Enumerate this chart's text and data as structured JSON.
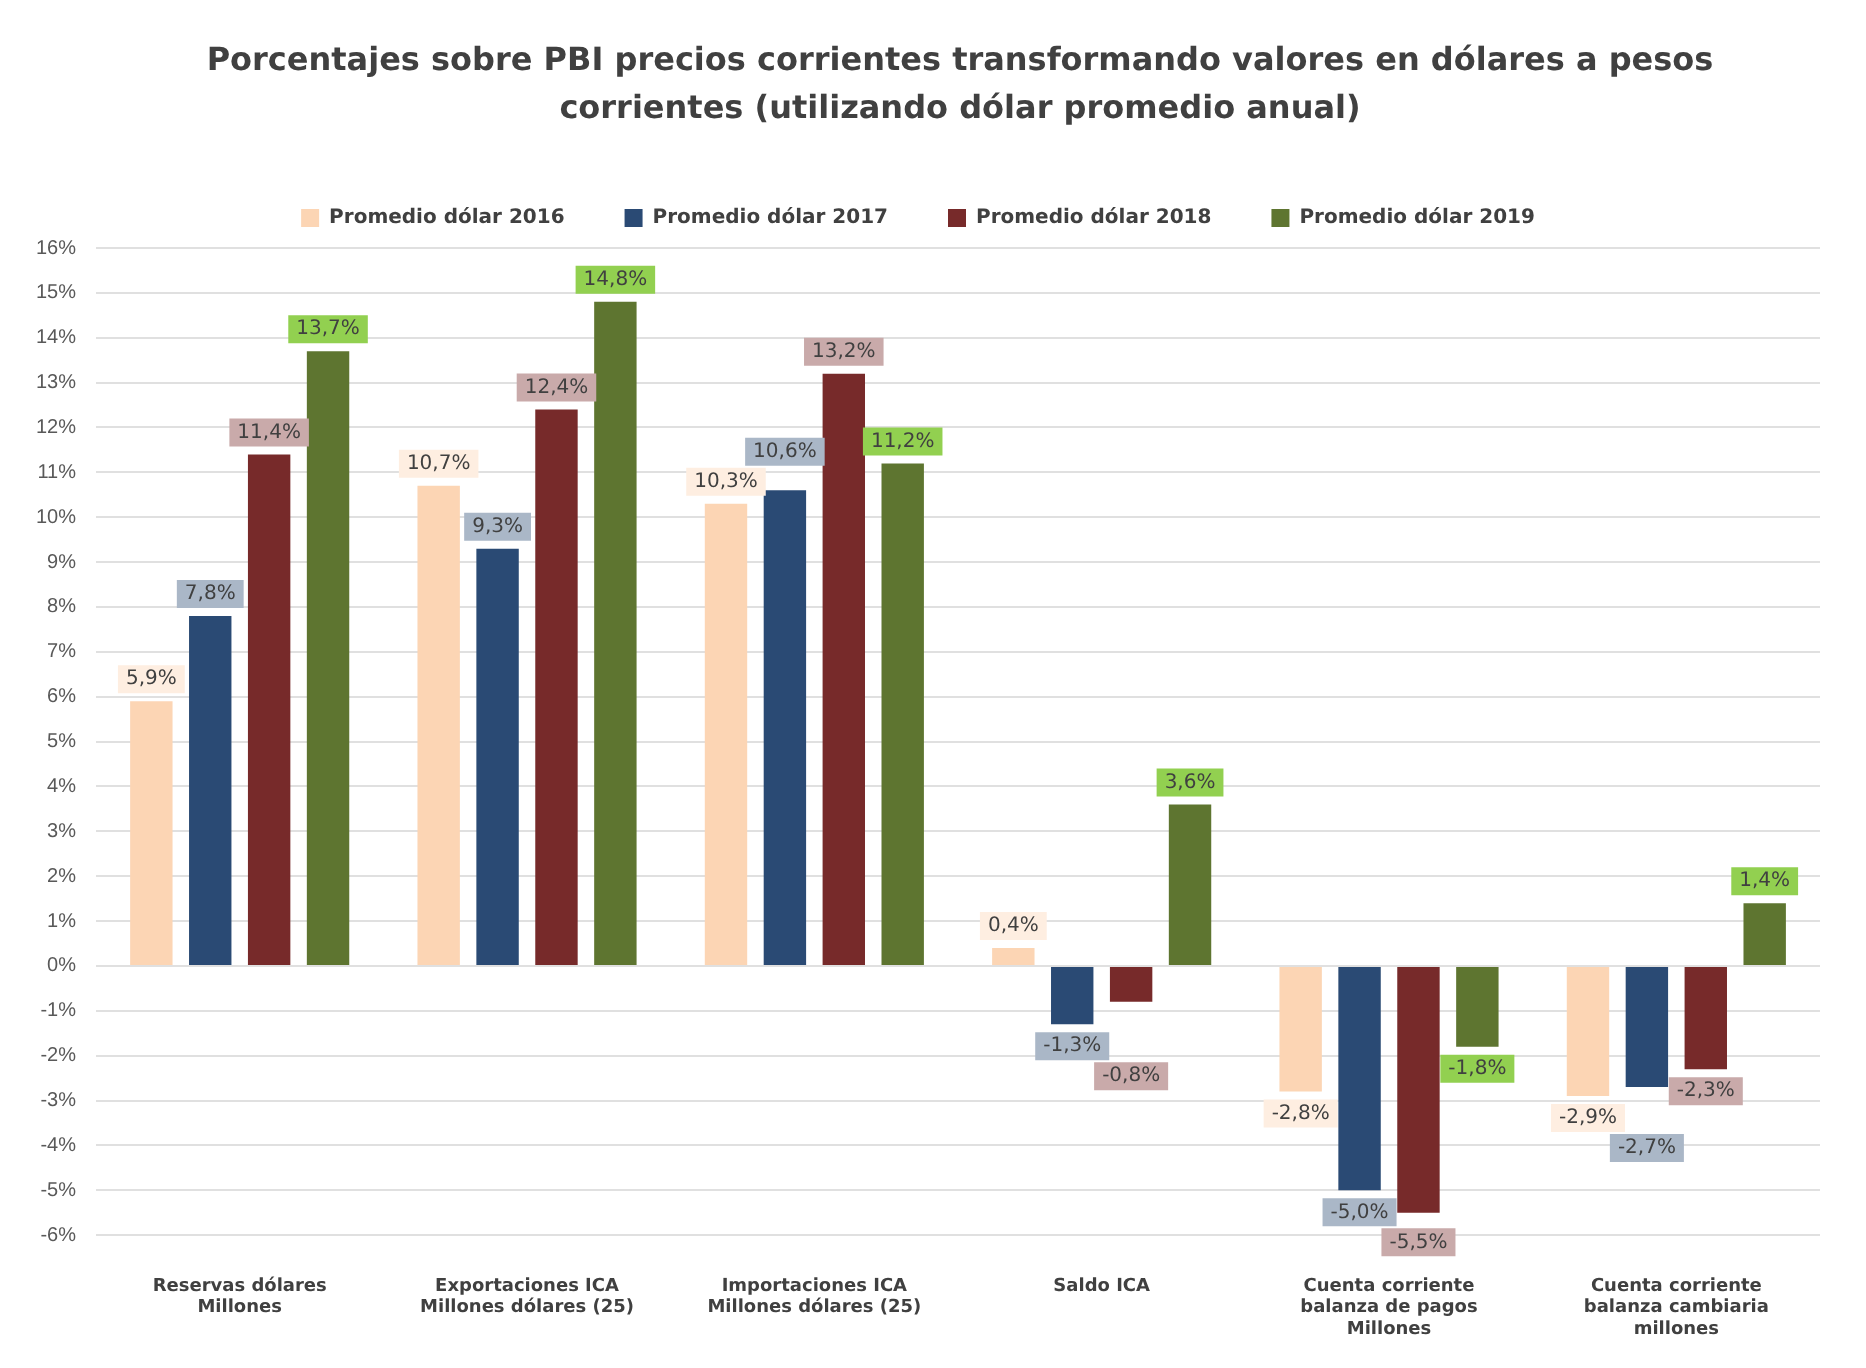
{
  "chart_data": {
    "type": "bar",
    "title": "Porcentajes sobre PBI precios corrientes transformando valores en dólares a pesos corrientes (utilizando dólar promedio anual)",
    "categories": [
      "Reservas dólares Millones",
      "Exportaciones  ICA Millones dólares (25)",
      "Importaciones ICA Millones dólares (25)",
      "Saldo ICA",
      "Cuenta corriente balanza de pagos Millones",
      "Cuenta corriente balanza cambiaria millones"
    ],
    "series": [
      {
        "name": "Promedio dólar 2016",
        "color": "#fcd5b4",
        "values": [
          5.9,
          10.7,
          10.3,
          0.4,
          -2.8,
          -2.9
        ],
        "value_labels": [
          "5,9%",
          "10,7%",
          "10,3%",
          "0,4%",
          "-2,8%",
          "-2,9%"
        ]
      },
      {
        "name": "Promedio dólar 2017",
        "color": "#2a4a74",
        "values": [
          7.8,
          9.3,
          10.6,
          -1.3,
          -5.0,
          -2.7
        ],
        "value_labels": [
          "7,8%",
          "9,3%",
          "10,6%",
          "-1,3%",
          "-5,0%",
          "-2,7%"
        ]
      },
      {
        "name": "Promedio dólar 2018",
        "color": "#772a2a",
        "values": [
          11.4,
          12.4,
          13.2,
          -0.8,
          -5.5,
          -2.3
        ],
        "value_labels": [
          "11,4%",
          "12,4%",
          "13,2%",
          "-0,8%",
          "-5,5%",
          "-2,3%"
        ]
      },
      {
        "name": "Promedio dólar 2019",
        "color": "#5e7530",
        "values": [
          13.7,
          14.8,
          11.2,
          3.6,
          -1.8,
          1.4
        ],
        "value_labels": [
          "13,7%",
          "14,8%",
          "11,2%",
          "3,6%",
          "-1,8%",
          "1,4%"
        ]
      }
    ],
    "ylim": [
      -6,
      16
    ],
    "yticks": [
      {
        "value": -6,
        "label": "-6%"
      },
      {
        "value": -5,
        "label": "-5%"
      },
      {
        "value": -4,
        "label": "-4%"
      },
      {
        "value": -3,
        "label": "-3%"
      },
      {
        "value": -2,
        "label": "-2%"
      },
      {
        "value": -1,
        "label": "-1%"
      },
      {
        "value": 0,
        "label": "0%"
      },
      {
        "value": 1,
        "label": "1%"
      },
      {
        "value": 2,
        "label": "2%"
      },
      {
        "value": 3,
        "label": "3%"
      },
      {
        "value": 4,
        "label": "4%"
      },
      {
        "value": 5,
        "label": "5%"
      },
      {
        "value": 6,
        "label": "6%"
      },
      {
        "value": 7,
        "label": "7%"
      },
      {
        "value": 8,
        "label": "8%"
      },
      {
        "value": 9,
        "label": "9%"
      },
      {
        "value": 10,
        "label": "10%"
      },
      {
        "value": 11,
        "label": "11%"
      },
      {
        "value": 12,
        "label": "12%"
      },
      {
        "value": 13,
        "label": "13%"
      },
      {
        "value": 14,
        "label": "14%"
      },
      {
        "value": 15,
        "label": "15%"
      },
      {
        "value": 16,
        "label": "16%"
      }
    ],
    "grid": "y",
    "legend": "top"
  }
}
